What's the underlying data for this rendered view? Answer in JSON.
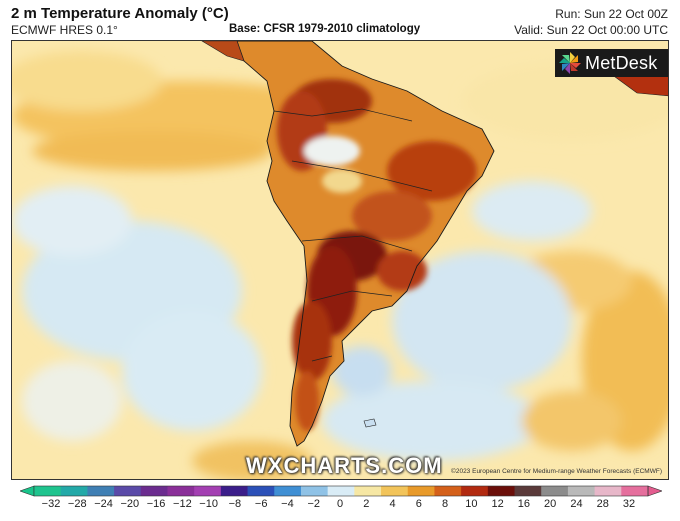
{
  "header": {
    "title": "2 m Temperature Anomaly (°C)",
    "model": "ECMWF HRES 0.1°",
    "base": "Base: CFSR 1979-2010 climatology",
    "run": "Run: Sun 22 Oct 00Z",
    "valid": "Valid: Sun 22 Oct 00:00 UTC"
  },
  "logo": {
    "text": "MetDesk"
  },
  "watermark": "WXCHARTS.COM",
  "copyright": "©2023 European Centre for Medium-range Weather Forecasts (ECMWF)",
  "colorbar": {
    "ticks": [
      "−32",
      "−28",
      "−24",
      "−20",
      "−16",
      "−12",
      "−10",
      "−8",
      "−6",
      "−4",
      "−2",
      "0",
      "2",
      "4",
      "6",
      "8",
      "10",
      "12",
      "16",
      "20",
      "24",
      "28",
      "32"
    ],
    "colors": [
      "#1fc48e",
      "#23a9a8",
      "#3f7fb4",
      "#5a4aa8",
      "#6b2c8f",
      "#8a2f99",
      "#a33fb2",
      "#3b1e8a",
      "#2b50b8",
      "#3f8fd4",
      "#8fc2e6",
      "#d9ecf6",
      "#f6e7a4",
      "#f2c45a",
      "#e89a2a",
      "#d4601a",
      "#b22a10",
      "#6b0f0a",
      "#5a3a3a",
      "#8c8c8c",
      "#b9b9b9",
      "#e7b7c9",
      "#e56f9d"
    ],
    "underflow_color": "#19c48a",
    "overflow_color": "#e35c8f"
  },
  "colors": {
    "ocean_neutral": "#fbe7a8",
    "cool": "#d5e8f3",
    "warm": "#e7952f",
    "hot": "#b8360f",
    "very_hot": "#5e1010"
  }
}
